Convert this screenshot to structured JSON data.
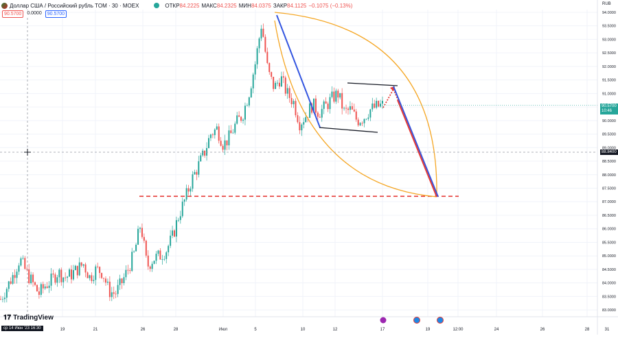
{
  "header": {
    "title": "Доллар США / Российский рубль TOM · 30 · MOEX",
    "open_label": "ОТКР",
    "open_value": "84.2225",
    "high_label": "МАКС",
    "high_value": "84.2325",
    "low_label": "МИН",
    "low_value": "84.0375",
    "close_label": "ЗАКР",
    "close_value": "84.1125",
    "change": "−0.1075 (−0.13%)"
  },
  "chips": {
    "sell": "90.5700",
    "spread": "0.0000",
    "buy": "90.5700"
  },
  "currency": "RUB",
  "branding": "TradingView",
  "crosshair": {
    "date_label": "ср 14 Июн '23   16:30",
    "price_label": "88.8400"
  },
  "last_price": {
    "value": "90.5700",
    "countdown": "10:46"
  },
  "colors": {
    "up": "#26a69a",
    "down": "#ef5350",
    "blue": "#3355e0",
    "orange": "#f5a623",
    "red": "#e53935"
  },
  "chart_data": {
    "type": "candlestick",
    "symbol": "USDRUB_TOM",
    "interval": "30",
    "exchange": "MOEX",
    "ylim": [
      82.75,
      94.1
    ],
    "y_ticks": [
      "94.0000",
      "93.5000",
      "93.0000",
      "92.5000",
      "92.0000",
      "91.5000",
      "91.0000",
      "90.5000",
      "90.0000",
      "89.5000",
      "89.0000",
      "88.5000",
      "88.0000",
      "87.5000",
      "87.0000",
      "86.5000",
      "86.0000",
      "85.5000",
      "85.0000",
      "84.5000",
      "84.0000",
      "83.5000",
      "83.0000"
    ],
    "x_ticks": [
      "19",
      "21",
      "26",
      "28",
      "Июл",
      "5",
      "10",
      "12",
      "17",
      "19",
      "12:00",
      "24",
      "26",
      "28",
      "31"
    ],
    "price_path": [
      [
        0,
        83.4
      ],
      [
        2,
        84.3
      ],
      [
        3,
        84.9
      ],
      [
        4,
        84.4
      ],
      [
        5,
        84.0
      ],
      [
        6,
        83.6
      ],
      [
        7,
        83.9
      ],
      [
        8,
        84.1
      ],
      [
        9,
        84.4
      ],
      [
        10,
        84.2
      ],
      [
        11,
        84.3
      ],
      [
        12,
        84.5
      ],
      [
        13,
        84.7
      ],
      [
        14,
        84.2
      ],
      [
        15,
        84.5
      ],
      [
        16,
        84.4
      ],
      [
        17,
        83.7
      ],
      [
        18,
        83.6
      ],
      [
        19,
        84.0
      ],
      [
        20,
        84.5
      ],
      [
        21,
        85.1
      ],
      [
        22,
        86.2
      ],
      [
        23,
        84.6
      ],
      [
        24,
        84.9
      ],
      [
        25,
        85.0
      ],
      [
        26,
        85.2
      ],
      [
        27,
        85.7
      ],
      [
        28,
        86.5
      ],
      [
        29,
        87.1
      ],
      [
        30,
        87.8
      ],
      [
        31,
        88.3
      ],
      [
        32,
        88.8
      ],
      [
        33,
        89.5
      ],
      [
        34,
        89.7
      ],
      [
        35,
        89.1
      ],
      [
        36,
        89.4
      ],
      [
        37,
        89.9
      ],
      [
        38,
        90.2
      ],
      [
        39,
        91.0
      ],
      [
        40,
        92.1
      ],
      [
        41,
        93.6
      ],
      [
        42,
        91.8
      ],
      [
        43,
        91.2
      ],
      [
        44,
        91.6
      ],
      [
        45,
        91.0
      ],
      [
        46,
        90.7
      ],
      [
        47,
        89.9
      ],
      [
        48,
        90.2
      ],
      [
        49,
        90.6
      ],
      [
        50,
        90.3
      ],
      [
        51,
        90.5
      ],
      [
        52,
        90.8
      ],
      [
        53,
        91.0
      ],
      [
        54,
        90.3
      ],
      [
        55,
        90.4
      ],
      [
        56,
        90.0
      ],
      [
        57,
        90.1
      ],
      [
        58,
        90.4
      ],
      [
        59,
        90.5
      ],
      [
        60,
        90.57
      ]
    ],
    "annotations": {
      "support_level": 87.2,
      "channel_top_line": [
        [
          12.3,
          91.4
        ],
        [
          13.3,
          91.3
        ]
      ],
      "channel_bottom_line": [
        [
          10.9,
          89.8
        ],
        [
          12.8,
          89.6
        ]
      ],
      "projection_target": 87.2
    }
  }
}
